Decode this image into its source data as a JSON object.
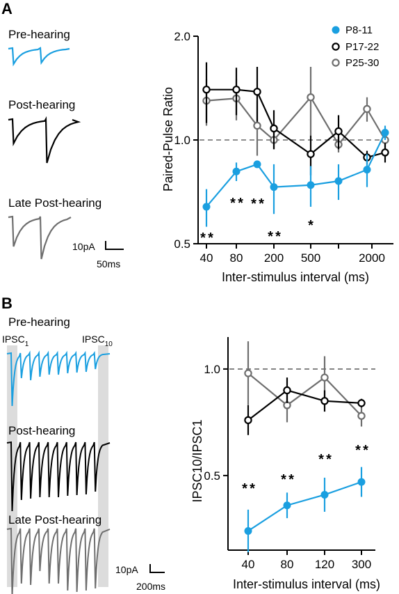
{
  "figure": {
    "panel_a_label": "A",
    "panel_b_label": "B"
  },
  "panel_a": {
    "trace_labels": [
      "Pre-hearing",
      "Post-hearing",
      "Late Post-hearing"
    ],
    "scalebar": {
      "current": "10pA",
      "time": "50ms"
    }
  },
  "panel_b": {
    "trace_labels": [
      "Pre-hearing",
      "Post-hearing",
      "Late Post-hearing"
    ],
    "marker_first": "IPSC",
    "marker_first_sub": "1",
    "marker_last": "IPSC",
    "marker_last_sub": "10",
    "scalebar": {
      "current": "10pA",
      "time": "200ms"
    }
  },
  "colors": {
    "p8_11": "#1a9fe0",
    "p17_22": "#000000",
    "p25_30": "#6e6e6e",
    "shade": "#dcdcdc"
  },
  "chart_data": [
    {
      "type": "line",
      "ylabel": "Paired-Pulse Ratio",
      "xlabel": "Inter-stimulus interval (ms)",
      "xscale": "log",
      "x_ticks": [
        "40",
        "80",
        "200",
        "500",
        "2000"
      ],
      "y_ticks": [
        "0.5",
        "1.0",
        "2.0"
      ],
      "ylim": [
        0.5,
        2.0
      ],
      "yscale": "log",
      "reference_line": 1.0,
      "legend": [
        "P8-11",
        "P17-22",
        "P25-30"
      ],
      "legend_position": "top-right",
      "x": [
        40,
        80,
        120,
        200,
        500,
        1000,
        2000,
        3000
      ],
      "series": [
        {
          "name": "P8-11",
          "values": [
            0.64,
            0.81,
            0.85,
            0.73,
            0.74,
            0.76,
            0.82,
            1.05
          ],
          "errors": [
            0.08,
            0.05,
            0.02,
            0.12,
            0.1,
            0.09,
            0.09,
            0.05
          ]
        },
        {
          "name": "P17-22",
          "values": [
            1.4,
            1.4,
            1.38,
            1.08,
            0.91,
            1.06,
            0.89,
            0.92
          ],
          "errors": [
            0.28,
            0.22,
            0.25,
            0.14,
            0.12,
            0.12,
            0.04,
            0.06
          ]
        },
        {
          "name": "P25-30",
          "values": [
            1.3,
            1.32,
            1.1,
            1.0,
            1.33,
            0.97,
            1.23,
            1.0
          ],
          "errors": [
            0.2,
            0.18,
            0.2,
            0.06,
            0.3,
            0.05,
            0.1,
            0.05
          ]
        }
      ],
      "significance": [
        {
          "x": 40,
          "marks": [
            "*",
            "*"
          ]
        },
        {
          "x": 80,
          "marks": [
            "*",
            "*"
          ]
        },
        {
          "x": 120,
          "marks": [
            "*",
            "*"
          ]
        },
        {
          "x": 200,
          "marks": [
            "*",
            "*"
          ]
        },
        {
          "x": 500,
          "marks": [
            "*"
          ]
        }
      ]
    },
    {
      "type": "line",
      "ylabel": "IPSC10/IPSC1",
      "xlabel": "Inter-stimulus interval (ms)",
      "x_ticks": [
        "40",
        "80",
        "120",
        "300"
      ],
      "y_ticks": [
        "0.5",
        "1.0"
      ],
      "ylim": [
        0.15,
        1.15
      ],
      "reference_line": 1.0,
      "categories": [
        "40",
        "80",
        "120",
        "300"
      ],
      "series": [
        {
          "name": "P8-11",
          "values": [
            0.24,
            0.36,
            0.41,
            0.47
          ],
          "errors": [
            0.1,
            0.06,
            0.08,
            0.07
          ]
        },
        {
          "name": "P17-22",
          "values": [
            0.76,
            0.9,
            0.85,
            0.84
          ],
          "errors": [
            0.07,
            0.06,
            0.05,
            0.02
          ]
        },
        {
          "name": "P25-30",
          "values": [
            0.98,
            0.83,
            0.96,
            0.78
          ],
          "errors": [
            0.15,
            0.08,
            0.1,
            0.05
          ]
        }
      ],
      "significance": [
        {
          "x": "40",
          "marks": [
            "*",
            "*"
          ]
        },
        {
          "x": "80",
          "marks": [
            "*",
            "*"
          ]
        },
        {
          "x": "120",
          "marks": [
            "*",
            "*"
          ]
        },
        {
          "x": "300",
          "marks": [
            "*",
            "*"
          ]
        }
      ]
    }
  ]
}
